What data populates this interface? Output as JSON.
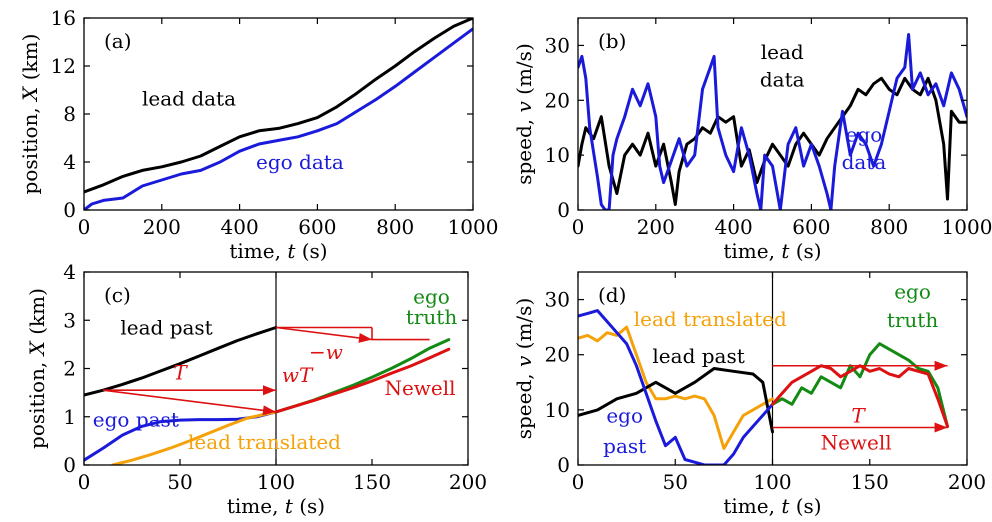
{
  "panels": [
    {
      "id": "a",
      "panel_label": "(a)",
      "xlabel_prefix": "time, ",
      "xlabel_var": "t",
      "xlabel_unit": " (s)",
      "ylabel_prefix": "position, ",
      "ylabel_var": "X",
      "ylabel_unit": " (km)",
      "xlim": [
        0,
        1000
      ],
      "ylim": [
        0,
        16
      ],
      "xticks": [
        0,
        200,
        400,
        600,
        800,
        1000
      ],
      "yticks": [
        0,
        4,
        8,
        12,
        16
      ],
      "annotations": [
        {
          "text": "lead data",
          "x": 270,
          "y": 8.7,
          "color": "#000000"
        },
        {
          "text": "ego data",
          "x": 555,
          "y": 3.4,
          "color": "#1a1adb"
        }
      ]
    },
    {
      "id": "b",
      "panel_label": "(b)",
      "xlabel_prefix": "time, ",
      "xlabel_var": "t",
      "xlabel_unit": " (s)",
      "ylabel_prefix": "speed, ",
      "ylabel_var": "v",
      "ylabel_unit": " (m/s)",
      "xlim": [
        0,
        1000
      ],
      "ylim": [
        0,
        35
      ],
      "xticks": [
        0,
        200,
        400,
        600,
        800,
        1000
      ],
      "yticks": [
        0,
        10,
        20,
        30
      ],
      "annotations": [
        {
          "text": "lead",
          "x": 525,
          "y": 27.5,
          "color": "#000000"
        },
        {
          "text": "data",
          "x": 525,
          "y": 22.5,
          "color": "#000000"
        },
        {
          "text": "ego",
          "x": 735,
          "y": 12.5,
          "color": "#1a1adb"
        },
        {
          "text": "data",
          "x": 735,
          "y": 7.5,
          "color": "#1a1adb"
        }
      ]
    },
    {
      "id": "c",
      "panel_label": "(c)",
      "xlabel_prefix": "time, ",
      "xlabel_var": "t",
      "xlabel_unit": " (s)",
      "ylabel_prefix": "position, ",
      "ylabel_var": "X",
      "ylabel_unit": " (km)",
      "xlim": [
        0,
        200
      ],
      "ylim": [
        0,
        4
      ],
      "xticks": [
        0,
        50,
        100,
        150,
        200
      ],
      "yticks": [
        0,
        1,
        2,
        3,
        4
      ],
      "annotations": [
        {
          "text": "lead past",
          "x": 43,
          "y": 2.7,
          "color": "#000000"
        },
        {
          "text": "ego past",
          "x": 27,
          "y": 0.8,
          "color": "#1a1adb"
        },
        {
          "text": "lead translated",
          "x": 94,
          "y": 0.33,
          "color": "#f5a20a"
        },
        {
          "text": "ego",
          "x": 181,
          "y": 3.35,
          "color": "#138a13"
        },
        {
          "text": "truth",
          "x": 181,
          "y": 2.92,
          "color": "#138a13"
        },
        {
          "text": "Newell",
          "x": 175,
          "y": 1.45,
          "color": "#dd1111"
        },
        {
          "text": "T",
          "x": 50,
          "y": 1.77,
          "color": "#dd1111",
          "italic": true
        },
        {
          "text": "−w",
          "x": 126,
          "y": 2.2,
          "color": "#dd1111",
          "italic": true
        },
        {
          "text": "wT",
          "x": 111,
          "y": 1.72,
          "color": "#dd1111",
          "italic": true
        }
      ]
    },
    {
      "id": "d",
      "panel_label": "(d)",
      "xlabel_prefix": "time, ",
      "xlabel_var": "t",
      "xlabel_unit": " (s)",
      "ylabel_prefix": "speed, ",
      "ylabel_var": "v",
      "ylabel_unit": " (m/s)",
      "xlim": [
        0,
        200
      ],
      "ylim": [
        0,
        35
      ],
      "xticks": [
        0,
        50,
        100,
        150,
        200
      ],
      "yticks": [
        0,
        10,
        20,
        30
      ],
      "annotations": [
        {
          "text": "lead translated",
          "x": 68,
          "y": 25.2,
          "color": "#f5a20a"
        },
        {
          "text": "lead past",
          "x": 62,
          "y": 18.5,
          "color": "#000000"
        },
        {
          "text": "ego",
          "x": 24,
          "y": 7.7,
          "color": "#1a1adb"
        },
        {
          "text": "past",
          "x": 24,
          "y": 2.2,
          "color": "#1a1adb"
        },
        {
          "text": "ego",
          "x": 172,
          "y": 30.2,
          "color": "#138a13"
        },
        {
          "text": "truth",
          "x": 172,
          "y": 25.0,
          "color": "#138a13"
        },
        {
          "text": "T",
          "x": 144,
          "y": 7.7,
          "color": "#dd1111",
          "italic": true
        },
        {
          "text": "Newell",
          "x": 143,
          "y": 2.8,
          "color": "#dd1111"
        }
      ]
    }
  ],
  "chart_data": [
    {
      "type": "line",
      "panel": "a",
      "xlabel": "time, t (s)",
      "ylabel": "position, X (km)",
      "xlim": [
        0,
        1000
      ],
      "ylim": [
        0,
        16
      ],
      "series": [
        {
          "name": "lead data",
          "color": "#000000",
          "x": [
            0,
            50,
            100,
            150,
            200,
            250,
            300,
            350,
            400,
            450,
            500,
            550,
            600,
            650,
            700,
            750,
            800,
            850,
            900,
            950,
            1000
          ],
          "y": [
            1.5,
            2.1,
            2.8,
            3.3,
            3.6,
            4.0,
            4.5,
            5.3,
            6.1,
            6.6,
            6.8,
            7.2,
            7.7,
            8.6,
            9.7,
            10.9,
            12.0,
            13.2,
            14.3,
            15.3,
            16.0
          ]
        },
        {
          "name": "ego data",
          "color": "#1a1adb",
          "x": [
            0,
            20,
            50,
            100,
            150,
            200,
            250,
            300,
            350,
            400,
            450,
            500,
            550,
            600,
            650,
            700,
            750,
            800,
            850,
            900,
            950,
            1000
          ],
          "y": [
            0.0,
            0.5,
            0.8,
            1.0,
            2.0,
            2.5,
            3.0,
            3.3,
            4.0,
            4.9,
            5.5,
            5.8,
            6.1,
            6.6,
            7.2,
            8.2,
            9.2,
            10.3,
            11.5,
            12.7,
            13.9,
            15.1
          ]
        }
      ]
    },
    {
      "type": "line",
      "panel": "b",
      "xlabel": "time, t (s)",
      "ylabel": "speed, v (m/s)",
      "xlim": [
        0,
        1000
      ],
      "ylim": [
        0,
        35
      ],
      "series": [
        {
          "name": "lead data",
          "color": "#000000",
          "x": [
            0,
            10,
            20,
            40,
            60,
            80,
            100,
            120,
            140,
            160,
            180,
            200,
            220,
            240,
            250,
            260,
            280,
            300,
            320,
            340,
            360,
            380,
            400,
            420,
            440,
            460,
            480,
            500,
            520,
            540,
            560,
            580,
            600,
            620,
            640,
            660,
            680,
            700,
            720,
            740,
            760,
            780,
            800,
            820,
            840,
            860,
            880,
            900,
            920,
            940,
            950,
            960,
            980,
            1000
          ],
          "y": [
            8,
            12,
            15,
            13,
            17,
            8,
            3,
            10,
            12,
            10,
            14,
            8,
            12,
            5,
            1,
            7,
            12,
            13,
            15,
            14,
            17,
            16,
            17,
            8,
            11,
            5,
            9,
            12,
            10,
            8,
            12,
            14,
            12,
            10,
            13,
            15,
            17,
            19,
            22,
            21,
            23,
            24,
            22,
            21,
            24,
            22,
            21,
            24,
            20,
            12,
            2,
            18,
            16,
            16
          ]
        },
        {
          "name": "ego data",
          "color": "#1a1adb",
          "x": [
            0,
            10,
            20,
            30,
            50,
            60,
            70,
            80,
            90,
            100,
            120,
            140,
            160,
            180,
            200,
            210,
            220,
            240,
            260,
            280,
            300,
            320,
            340,
            350,
            360,
            380,
            400,
            420,
            440,
            460,
            470,
            480,
            500,
            520,
            540,
            560,
            580,
            600,
            620,
            640,
            650,
            660,
            680,
            700,
            720,
            740,
            760,
            780,
            800,
            820,
            840,
            850,
            860,
            880,
            900,
            920,
            940,
            960,
            980,
            1000
          ],
          "y": [
            26,
            28,
            24,
            15,
            6,
            1,
            0,
            0,
            10,
            13,
            17,
            22,
            19,
            23,
            17,
            8,
            5,
            9,
            13,
            8,
            10,
            22,
            26,
            28,
            15,
            10,
            7,
            15,
            10,
            3,
            0,
            10,
            8,
            0,
            12,
            15,
            8,
            12,
            8,
            3,
            0,
            8,
            18,
            10,
            14,
            12,
            8,
            12,
            18,
            24,
            26,
            32,
            22,
            25,
            21,
            23,
            19,
            25,
            22,
            17
          ]
        }
      ]
    },
    {
      "type": "line",
      "panel": "c",
      "xlabel": "time, t (s)",
      "ylabel": "position, X (km)",
      "xlim": [
        0,
        200
      ],
      "ylim": [
        0,
        4
      ],
      "series": [
        {
          "name": "lead past",
          "color": "#000000",
          "x": [
            0,
            10,
            20,
            30,
            40,
            50,
            60,
            70,
            80,
            90,
            100
          ],
          "y": [
            1.45,
            1.55,
            1.67,
            1.8,
            1.95,
            2.1,
            2.26,
            2.42,
            2.58,
            2.72,
            2.85
          ]
        },
        {
          "name": "ego past",
          "color": "#1a1adb",
          "x": [
            0,
            10,
            20,
            30,
            40,
            50,
            60,
            70,
            80,
            90,
            100
          ],
          "y": [
            0.1,
            0.35,
            0.62,
            0.8,
            0.9,
            0.93,
            0.94,
            0.94,
            0.95,
            1.0,
            1.1
          ]
        },
        {
          "name": "lead translated",
          "color": "#f5a20a",
          "x": [
            15,
            25,
            35,
            45,
            55,
            65,
            75,
            85,
            95,
            100
          ],
          "y": [
            0.0,
            0.1,
            0.22,
            0.35,
            0.5,
            0.66,
            0.82,
            0.97,
            1.06,
            1.1
          ]
        },
        {
          "name": "ego truth",
          "color": "#138a13",
          "x": [
            100,
            110,
            120,
            130,
            140,
            150,
            160,
            170,
            180,
            190
          ],
          "y": [
            1.1,
            1.22,
            1.35,
            1.5,
            1.65,
            1.82,
            2.0,
            2.2,
            2.42,
            2.6
          ]
        },
        {
          "name": "Newell",
          "color": "#dd1111",
          "x": [
            100,
            110,
            120,
            130,
            140,
            150,
            160,
            170,
            180,
            190
          ],
          "y": [
            1.1,
            1.22,
            1.34,
            1.47,
            1.6,
            1.74,
            1.9,
            2.05,
            2.22,
            2.4
          ]
        }
      ]
    },
    {
      "type": "line",
      "panel": "d",
      "xlabel": "time, t (s)",
      "ylabel": "speed, v (m/s)",
      "xlim": [
        0,
        200
      ],
      "ylim": [
        0,
        35
      ],
      "series": [
        {
          "name": "lead translated",
          "color": "#f5a20a",
          "x": [
            0,
            5,
            10,
            15,
            20,
            25,
            30,
            35,
            40,
            45,
            50,
            55,
            60,
            65,
            70,
            75,
            80,
            85,
            90,
            95,
            100
          ],
          "y": [
            23,
            23.5,
            22.5,
            24,
            23.5,
            25,
            20,
            15,
            12,
            12,
            12.5,
            12,
            12.5,
            12,
            9,
            3,
            6,
            9,
            10,
            11,
            12
          ]
        },
        {
          "name": "lead past",
          "color": "#000000",
          "x": [
            0,
            10,
            20,
            30,
            40,
            50,
            60,
            70,
            80,
            90,
            95,
            100
          ],
          "y": [
            9,
            10,
            12,
            13,
            15,
            13,
            15,
            17.5,
            17,
            16.5,
            15,
            6
          ]
        },
        {
          "name": "ego past",
          "color": "#1a1adb",
          "x": [
            0,
            5,
            10,
            15,
            20,
            25,
            30,
            35,
            40,
            45,
            50,
            55,
            60,
            65,
            70,
            75,
            80,
            85,
            90,
            95,
            100
          ],
          "y": [
            27,
            27.5,
            28,
            26,
            24,
            22,
            18,
            13,
            8,
            3.5,
            5,
            1,
            0.5,
            0,
            0,
            0,
            2,
            5,
            7,
            9,
            11
          ]
        },
        {
          "name": "ego truth",
          "color": "#138a13",
          "x": [
            100,
            105,
            110,
            115,
            120,
            125,
            130,
            135,
            140,
            145,
            150,
            155,
            160,
            165,
            170,
            175,
            180,
            185,
            190
          ],
          "y": [
            11,
            12,
            11,
            14,
            13,
            16,
            15,
            14,
            18,
            16,
            20,
            22,
            21,
            20,
            19,
            17.5,
            17,
            14,
            7
          ]
        },
        {
          "name": "Newell",
          "color": "#dd1111",
          "x": [
            100,
            105,
            110,
            115,
            120,
            125,
            130,
            135,
            140,
            145,
            150,
            155,
            160,
            165,
            170,
            175,
            180,
            185,
            190
          ],
          "y": [
            11,
            13,
            15,
            16,
            17,
            18,
            17.5,
            16,
            17,
            18,
            17,
            17.5,
            16.5,
            16,
            17.5,
            17,
            16.5,
            12,
            7
          ]
        }
      ]
    }
  ]
}
